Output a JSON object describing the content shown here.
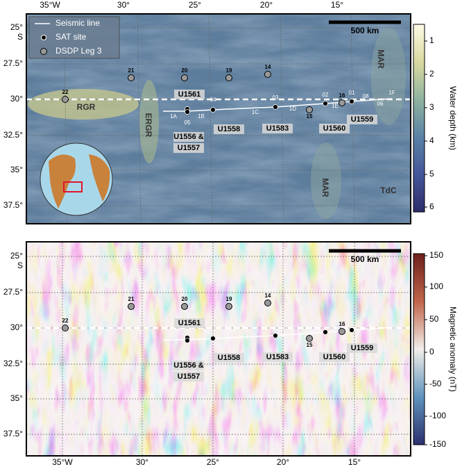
{
  "panels": [
    {
      "legend": [
        "Seismic line",
        "SAT site",
        "DSDP Leg 3"
      ],
      "scale_bar": "500 km",
      "lon_labels": [
        "35°W",
        "30°",
        "25°",
        "20°",
        "15°"
      ],
      "lat_labels": [
        "25°",
        "S",
        "27.5°",
        "30°",
        "32.5°",
        "35°",
        "37.5°"
      ],
      "colorbar": {
        "title": "Water depth (km)",
        "ticks": [
          1,
          2,
          3,
          4,
          5,
          6
        ]
      },
      "region_labels": [
        "RGR",
        "ERGR",
        "MAR",
        "MAR",
        "TdC"
      ],
      "dsdp_sites": [
        "21",
        "20",
        "19",
        "14",
        "22",
        "15",
        "16"
      ],
      "sat_sites": [
        "U1561",
        "U1556 &",
        "U1557",
        "U1558",
        "U1583",
        "U1560",
        "U1559"
      ],
      "segment_labels": [
        "1A",
        "1B",
        "1C",
        "1D",
        "1E",
        "1F"
      ],
      "shot_labels": [
        "05",
        "04",
        "03",
        "02",
        "01",
        "08",
        "06"
      ]
    },
    {
      "scale_bar": "500 km",
      "lon_labels": [
        "35°W",
        "30°",
        "25°",
        "20°",
        "15°"
      ],
      "lat_labels": [
        "25°",
        "S",
        "27.5°",
        "30°",
        "32.5°",
        "35°",
        "37.5°"
      ],
      "colorbar": {
        "title": "Magnetic anomaly (nT)",
        "ticks": [
          150,
          100,
          50,
          0,
          -50,
          -100,
          -150
        ]
      },
      "dsdp_sites": [
        "21",
        "20",
        "19",
        "14",
        "22",
        "15",
        "16"
      ],
      "sat_sites": [
        "U1561",
        "U1556 &",
        "U1557",
        "U1558",
        "U1583",
        "U1560",
        "U1559"
      ]
    }
  ]
}
